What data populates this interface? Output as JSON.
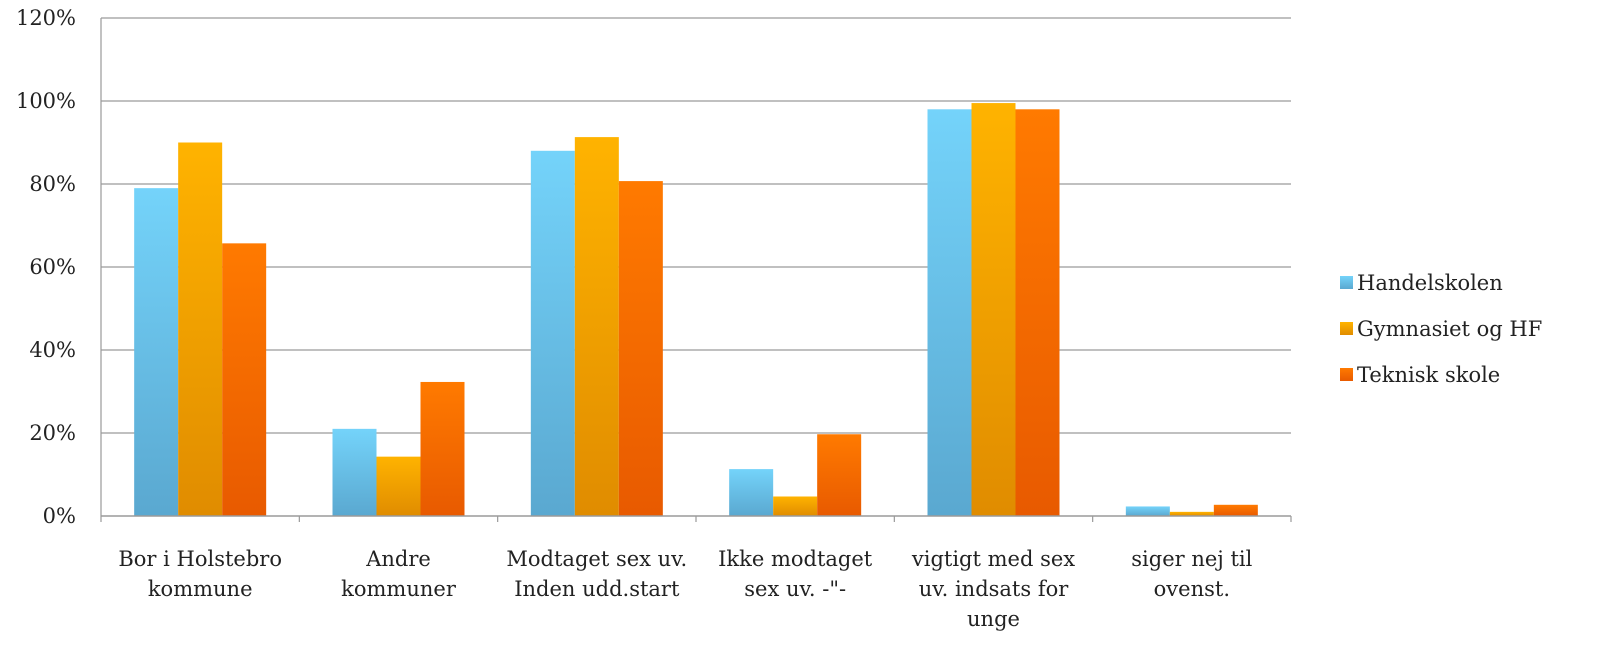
{
  "chart_data": {
    "type": "bar",
    "categories": [
      [
        "Bor i Holstebro",
        "kommune"
      ],
      [
        "Andre",
        "kommuner"
      ],
      [
        "Modtaget sex uv.",
        "Inden udd.start"
      ],
      [
        "Ikke modtaget",
        "sex uv. -\"-"
      ],
      [
        "vigtigt med sex",
        "uv. indsats for",
        "unge"
      ],
      [
        "siger nej til",
        "ovenst."
      ]
    ],
    "series": [
      {
        "name": "Handelskolen",
        "values": [
          79,
          21,
          88,
          11.3,
          98,
          2.3
        ],
        "color_top": "#74d3fa",
        "color_bottom": "#5aa8d0"
      },
      {
        "name": "Gymnasiet og HF",
        "values": [
          90,
          14.3,
          91.3,
          4.7,
          99.5,
          1
        ],
        "color_top": "#ffb300",
        "color_bottom": "#e08c00"
      },
      {
        "name": "Teknisk skole",
        "values": [
          65.7,
          32.3,
          80.7,
          19.7,
          98,
          2.7
        ],
        "color_top": "#ff7a00",
        "color_bottom": "#e85a00"
      }
    ],
    "yticks": [
      "0%",
      "20%",
      "40%",
      "60%",
      "80%",
      "100%",
      "120%"
    ],
    "ylim": [
      0,
      120
    ],
    "grid": true,
    "legend_position": "right"
  }
}
